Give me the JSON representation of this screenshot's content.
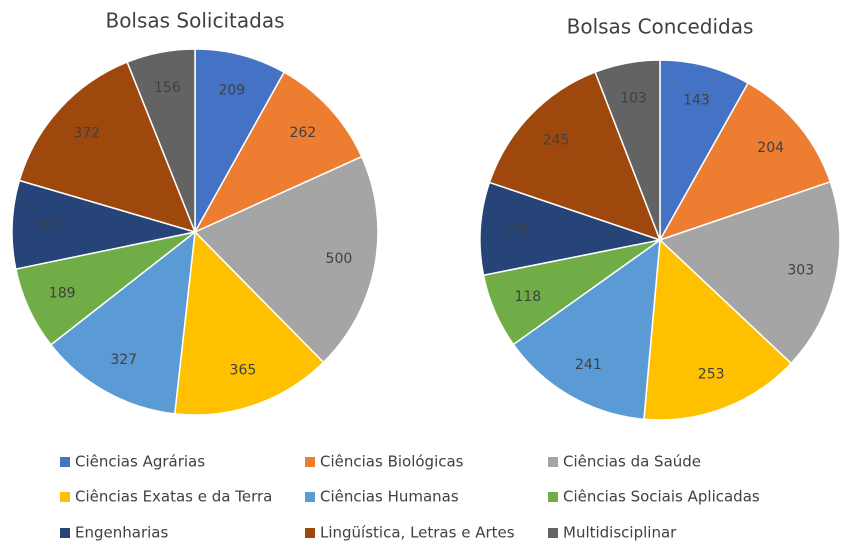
{
  "legend": {
    "categories": [
      "Ciências Agrárias",
      "Ciências Biológicas",
      "Ciências da Saúde",
      "Ciências Exatas e da Terra",
      "Ciências Humanas",
      "Ciências Sociais Aplicadas",
      "Engenharias",
      "Lingüística, Letras e Artes",
      "Multidisciplinar"
    ],
    "colors": [
      "#4472c4",
      "#ed7d31",
      "#a5a5a5",
      "#ffc000",
      "#5b9bd5",
      "#70ad47",
      "#264478",
      "#9e480e",
      "#636363"
    ]
  },
  "chart_data": [
    {
      "type": "pie",
      "title": "Bolsas Solicitadas",
      "values": [
        209,
        262,
        500,
        365,
        327,
        189,
        201,
        372,
        156
      ]
    },
    {
      "type": "pie",
      "title": "Bolsas Concedidas",
      "values": [
        143,
        204,
        303,
        253,
        241,
        118,
        146,
        245,
        103
      ]
    }
  ]
}
